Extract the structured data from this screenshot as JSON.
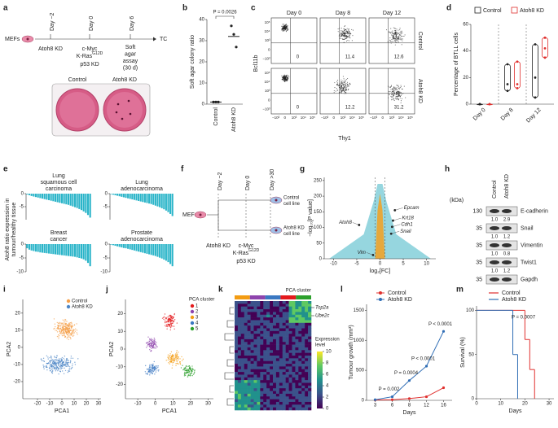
{
  "panel_labels": [
    "a",
    "b",
    "c",
    "d",
    "e",
    "f",
    "g",
    "h",
    "i",
    "j",
    "k",
    "l",
    "m"
  ],
  "a": {
    "start": "MEFs",
    "timepoints": [
      "Day −2",
      "Day 0",
      "Day 6"
    ],
    "step_1": "Atoh8 KD",
    "step_2": [
      "c-Myc",
      "K-Ras",
      "G12D",
      "p53 KD"
    ],
    "step_3": [
      "Soft",
      "agar",
      "assay",
      "(30 d)"
    ],
    "end": "TC",
    "dishes": [
      "Control",
      "Atoh8 KD"
    ]
  },
  "c": {
    "columns": [
      "Day 0",
      "Day 8",
      "Day 12"
    ],
    "rows": [
      "Control",
      "Atoh8 KD"
    ],
    "y_label": "Bcl11b",
    "x_label": "Thy1",
    "quadrant_values": [
      [
        0,
        11.4,
        12.6
      ],
      [
        0,
        12.2,
        31.2
      ]
    ],
    "axis_ticks": [
      "10⁵",
      "10⁴",
      "10³",
      "0",
      "−10³"
    ]
  },
  "f": {
    "start": "MEFs",
    "timepoints": [
      "Day −2",
      "Day 0",
      "Day >30"
    ],
    "step_1": "Atoh8 KD",
    "step_2": [
      "c-Myc",
      "K-Ras",
      "G12D",
      "p53 KD"
    ],
    "outcomes": [
      [
        "Control",
        "cell line"
      ],
      [
        "Atoh8 KD",
        "cell line"
      ]
    ]
  },
  "h": {
    "unit": "(kDa)",
    "lanes": [
      "Control",
      "Atoh8 KD"
    ],
    "bands": [
      {
        "marker": 130,
        "name": "E-cadherin",
        "ratios": [
          "1.0",
          "2.9"
        ]
      },
      {
        "marker": 35,
        "name": "Snail",
        "ratios": [
          "1.0",
          "1.2"
        ]
      },
      {
        "marker": 35,
        "name": "Vimentin",
        "ratios": [
          "1.0",
          "0.8"
        ]
      },
      {
        "marker": 35,
        "name": "Twist1",
        "ratios": [
          "1.0",
          "1.2"
        ]
      },
      {
        "marker": 35,
        "name": "Gapdh"
      }
    ]
  },
  "k": {
    "top_label": "PCA cluster",
    "genes": [
      "Top2a",
      "Ube2c"
    ],
    "colorbar_title": [
      "Expression",
      "level"
    ],
    "colorbar_ticks": [
      0,
      2,
      4,
      6,
      8,
      10
    ]
  },
  "chart_data": [
    {
      "type": "dot",
      "y_label": "Soft agar colony ratio",
      "categories": [
        "Control",
        "Atoh8 KD"
      ],
      "points": [
        [
          1,
          1,
          1
        ],
        [
          37,
          33,
          27
        ]
      ],
      "means": [
        1,
        32
      ],
      "ylim": [
        0,
        40
      ],
      "yticks": [
        0,
        10,
        20,
        30,
        40
      ],
      "annotation": "P = 0.0026",
      "color": "#222222"
    },
    {
      "type": "box",
      "y_label": "Percentage of BTLL cells",
      "categories": [
        "Day 0",
        "Day 8",
        "Day 12"
      ],
      "series": [
        {
          "name": "Control",
          "color": "#222222",
          "values": [
            [
              0,
              0,
              0
            ],
            [
              10,
              15,
              30
            ],
            [
              5,
              20,
              45
            ]
          ]
        },
        {
          "name": "Atoh8 KD",
          "color": "#e0302e",
          "values": [
            [
              0,
              0,
              0
            ],
            [
              12,
              15,
              32
            ],
            [
              35,
              42,
              50
            ]
          ]
        }
      ],
      "ylim": [
        0,
        60
      ],
      "yticks": [
        0,
        20,
        40,
        60
      ]
    },
    {
      "type": "bar",
      "title": [
        "Lung",
        "squamous cell",
        "carcinoma"
      ],
      "y_label_lines": [
        "Atoh8 ratio expression in",
        "tumour/healthy tissue"
      ],
      "color": "#2bb5c9",
      "ylim": [
        -10,
        0
      ],
      "yticks": [
        0,
        -5
      ],
      "values": [
        -0.3,
        -0.6,
        -0.9,
        -1.1,
        -1.3,
        -1.5,
        -1.7,
        -1.9,
        -2.1,
        -2.3,
        -2.5,
        -2.7,
        -2.9,
        -3.1,
        -3.3,
        -3.5,
        -3.7,
        -3.9,
        -4.1,
        -4.3,
        -4.6,
        -4.9,
        -5.2,
        -5.5,
        -5.9,
        -6.3,
        -6.8,
        -7.4,
        -8.2,
        -9.2
      ]
    },
    {
      "type": "bar",
      "title": [
        "Lung",
        "adenocarcinoma"
      ],
      "color": "#2bb5c9",
      "ylim": [
        -10,
        0
      ],
      "yticks": [
        0,
        -5
      ],
      "values": [
        -0.2,
        -0.4,
        -0.6,
        -0.8,
        -1.0,
        -1.2,
        -1.4,
        -1.6,
        -1.8,
        -2.0,
        -2.2,
        -2.4,
        -2.6,
        -2.8,
        -3.0,
        -3.2,
        -3.4,
        -3.6,
        -3.8,
        -4.0,
        -4.3,
        -4.6,
        -4.9,
        -5.2,
        -5.6,
        -6.0,
        -6.5,
        -7.1,
        -7.8,
        -8.6
      ]
    },
    {
      "type": "bar",
      "title": [
        "Breast",
        "cancer"
      ],
      "color": "#2bb5c9",
      "ylim": [
        -10,
        0
      ],
      "yticks": [
        0,
        -5,
        -10
      ],
      "values": [
        -1.5,
        -2.0,
        -2.3,
        -2.5,
        -2.7,
        -2.8,
        -3.0,
        -3.1,
        -3.2,
        -3.3,
        -3.4,
        -3.5,
        -3.6,
        -3.7,
        -3.8,
        -3.9,
        -4.0,
        -4.1,
        -4.2,
        -4.3,
        -4.4,
        -4.5,
        -4.6,
        -4.8,
        -5.0,
        -5.2,
        -5.5,
        -6.0,
        -6.8,
        -8.0
      ]
    },
    {
      "type": "bar",
      "title": [
        "Prostate",
        "adenocarcinoma"
      ],
      "color": "#2bb5c9",
      "ylim": [
        -10,
        0
      ],
      "yticks": [
        0,
        -5,
        -10
      ],
      "values": [
        -0.2,
        -0.4,
        -0.6,
        -0.8,
        -1.0,
        -1.2,
        -1.4,
        -1.5,
        -1.7,
        -1.9,
        -2.1,
        -2.3,
        -2.5,
        -2.7,
        -2.9,
        -3.1,
        -3.3,
        -3.5,
        -3.7,
        -3.9,
        -4.1,
        -4.3,
        -4.6,
        -4.9,
        -5.2,
        -5.6,
        -6.0,
        -6.5,
        -7.2,
        -8.0
      ]
    },
    {
      "type": "volcano",
      "y_label": "−log₁₀[P value]",
      "x_label": "log₂[FC]",
      "xlim": [
        -12,
        12
      ],
      "xticks": [
        -10,
        -5,
        0,
        5,
        10
      ],
      "ylim": [
        0,
        260
      ],
      "yticks": [
        0,
        50,
        100,
        150,
        200,
        250
      ],
      "x": [
        -4.5,
        3.2,
        2.8,
        2.6,
        2.4,
        -1.5
      ],
      "values": [
        108,
        155,
        122,
        102,
        80,
        12
      ],
      "point_labels": [
        "Atoh8",
        "Epcam",
        "Krt18",
        "Cdh1",
        "Snail",
        "Vim"
      ],
      "color": "#222222"
    },
    {
      "type": "scatter",
      "x_label": "PCA1",
      "y_label": "PCA2",
      "xlim": [
        -32,
        32
      ],
      "xticks": [
        -20,
        -10,
        0,
        10,
        20,
        30
      ],
      "ylim": [
        -30,
        28
      ],
      "yticks": [
        -20,
        -10,
        0,
        10,
        20
      ],
      "legend": [
        {
          "name": "Control",
          "color": "#f5a04a"
        },
        {
          "name": "Atoh8 KD",
          "color": "#4d86c6"
        }
      ]
    },
    {
      "type": "scatter",
      "x_label": "PCA1",
      "y_label": "PCA2",
      "xlim": [
        -17,
        33
      ],
      "xticks": [
        -10,
        0,
        10,
        20,
        30
      ],
      "ylim": [
        -28,
        28
      ],
      "yticks": [
        -20,
        -10,
        0,
        10,
        20
      ],
      "legend_title": "PCA cluster",
      "legend": [
        {
          "name": "1",
          "color": "#e41a1c"
        },
        {
          "name": "2",
          "color": "#8e44ad"
        },
        {
          "name": "3",
          "color": "#f39c12"
        },
        {
          "name": "4",
          "color": "#3a78c2"
        },
        {
          "name": "5",
          "color": "#2ca02c"
        }
      ]
    },
    {
      "type": "line",
      "y_label": "Tumour growth (mm³)",
      "x_label": "Days",
      "categories": [
        "3",
        "6",
        "8",
        "12",
        "16"
      ],
      "ylim": [
        0,
        1600
      ],
      "yticks": [
        0,
        500,
        1000,
        1500
      ],
      "series": [
        {
          "name": "Control",
          "color": "#e0302e",
          "values": [
            5,
            10,
            30,
            60,
            210
          ]
        },
        {
          "name": "Atoh8 KD",
          "color": "#2f6db5",
          "values": [
            10,
            60,
            330,
            570,
            1150
          ]
        }
      ],
      "annotations": [
        "P = 0.002",
        "P = 0.0004",
        "P < 0.0001",
        "P < 0.0001"
      ]
    },
    {
      "type": "step",
      "y_label": "Survival (%)",
      "x_label": "Days",
      "xlim": [
        0,
        32
      ],
      "xticks": [
        0,
        10,
        20,
        30
      ],
      "ylim": [
        0,
        105
      ],
      "yticks": [
        0,
        50,
        100
      ],
      "series": [
        {
          "name": "Control",
          "color": "#e0302e",
          "x": [
            0,
            20,
            22,
            24
          ],
          "values": [
            100,
            67,
            33,
            0
          ]
        },
        {
          "name": "Atoh8 KD",
          "color": "#2f6db5",
          "x": [
            0,
            15,
            17
          ],
          "values": [
            100,
            50,
            0
          ]
        }
      ],
      "annotation": "P = 0.0007"
    }
  ]
}
